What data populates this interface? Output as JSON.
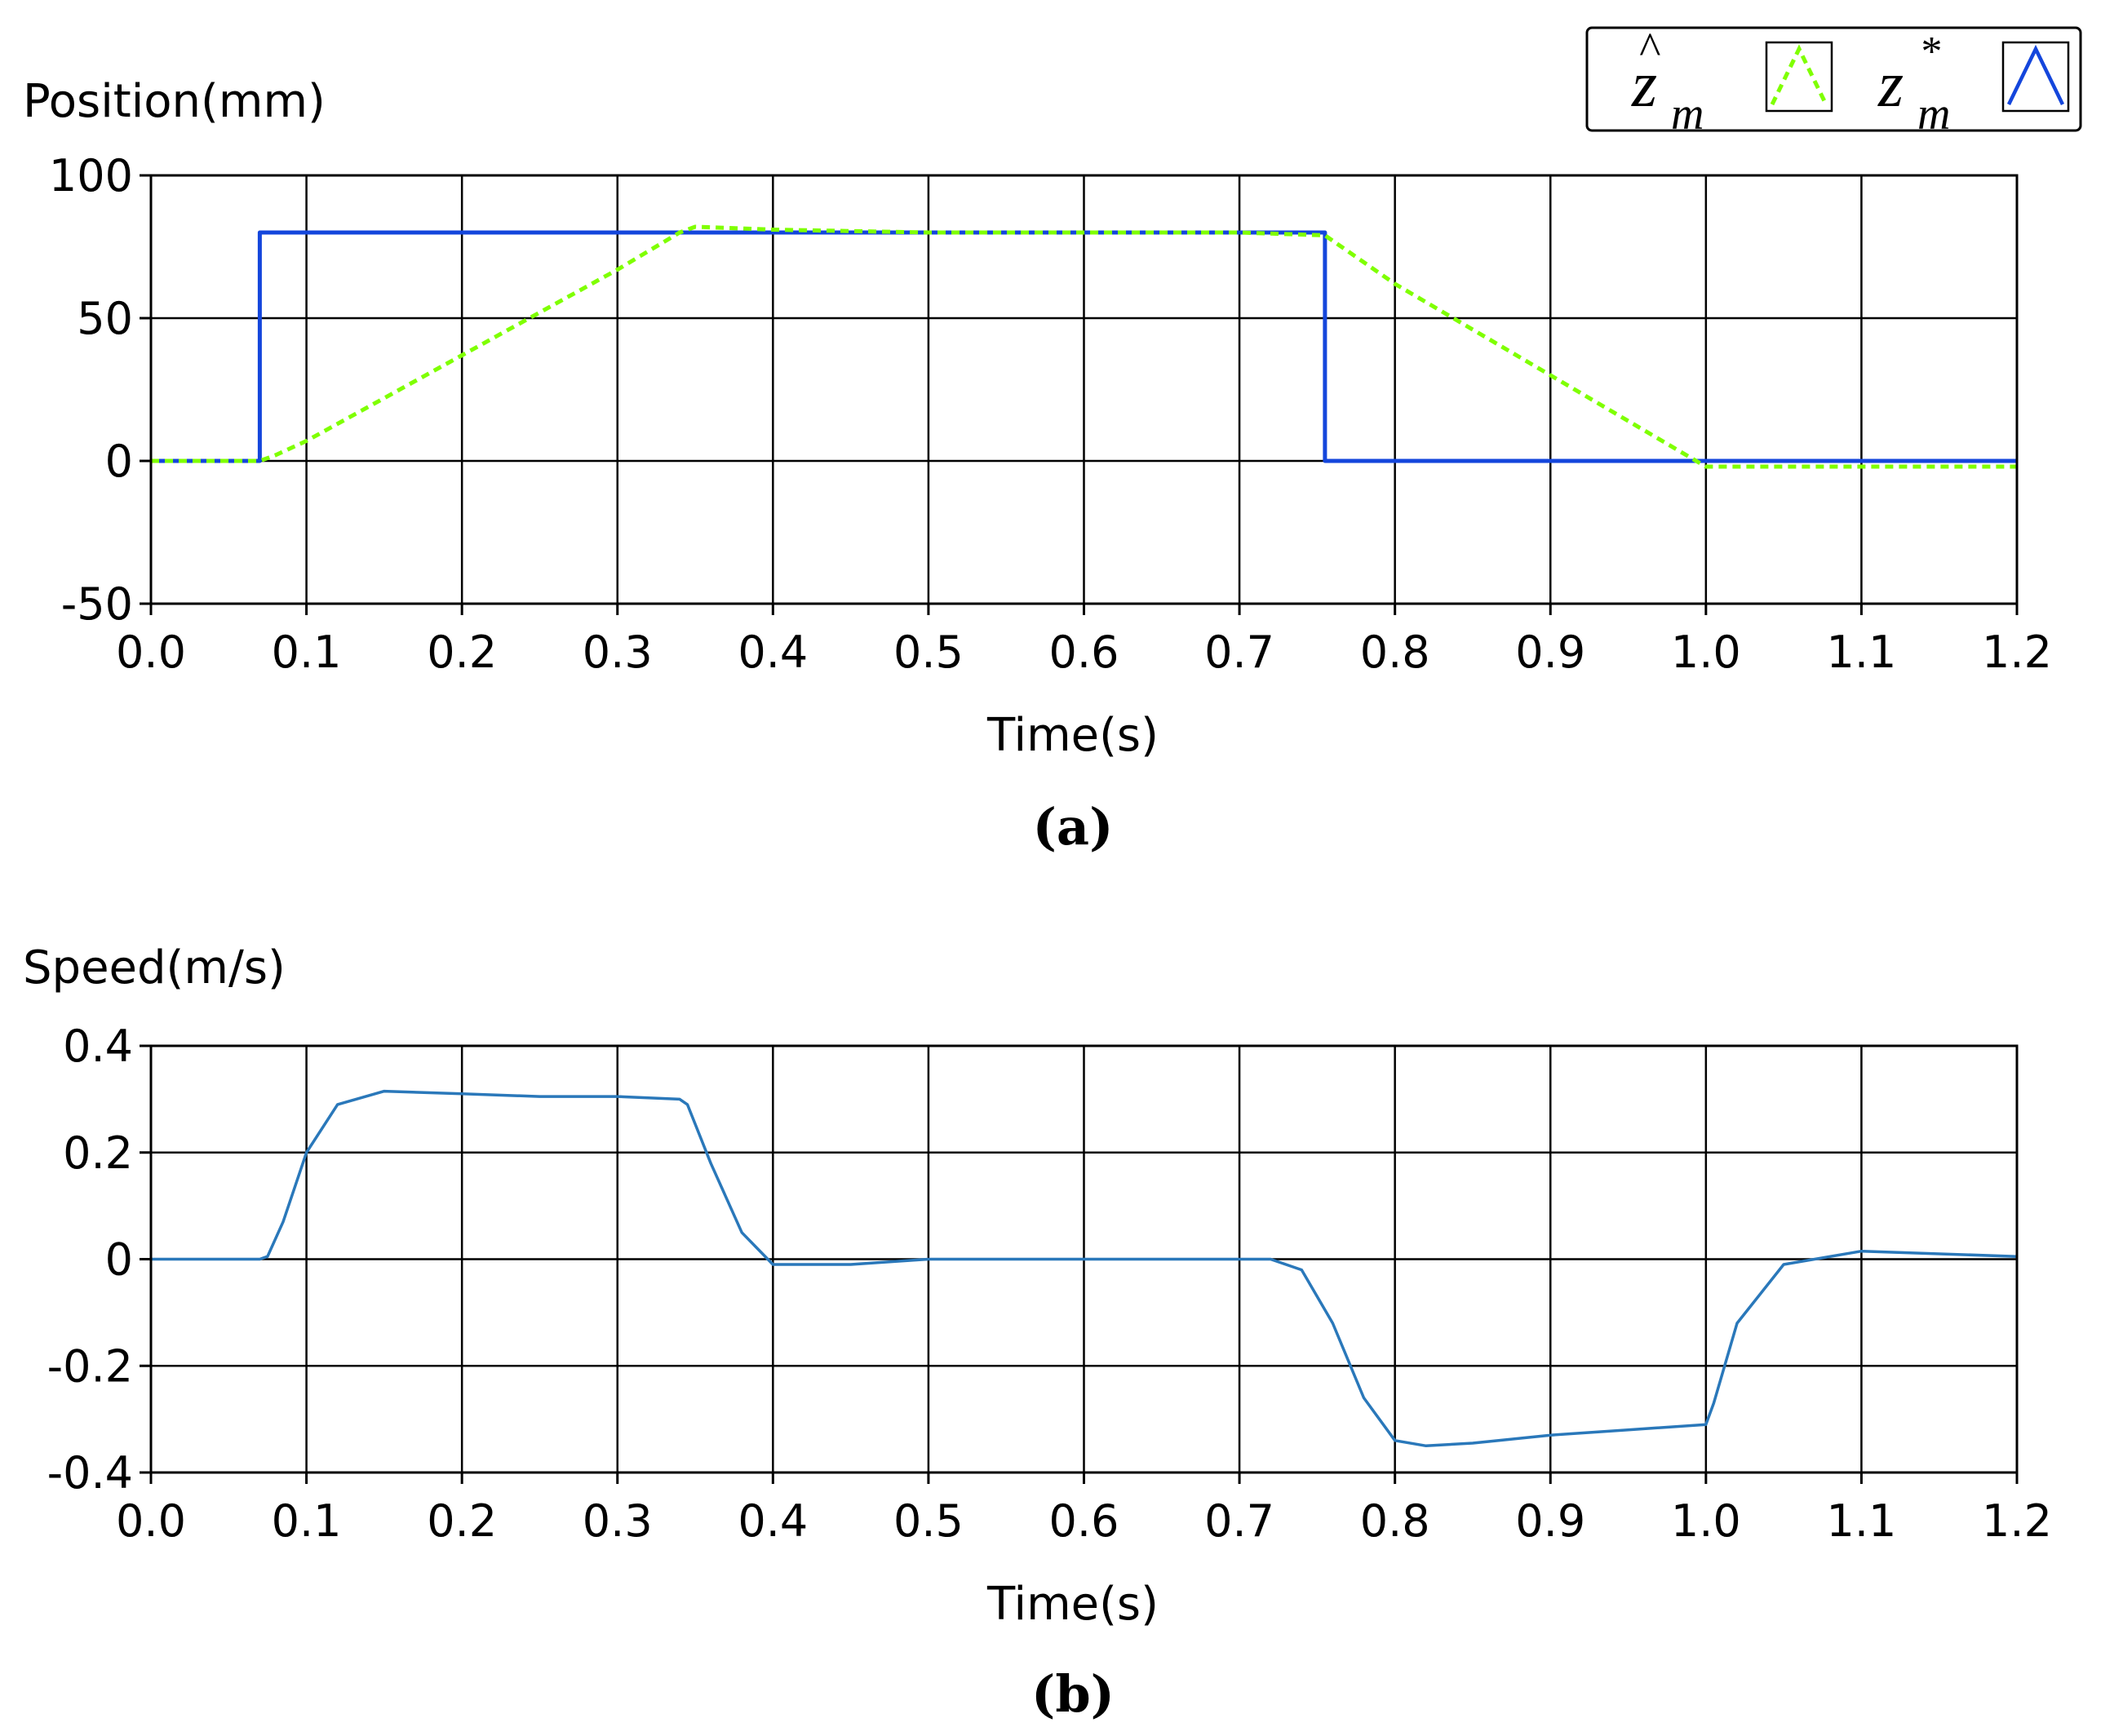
{
  "colors": {
    "estimated": "#7FFF00",
    "reference": "#1446DC",
    "speed": "#2A78BA"
  },
  "legend": {
    "items": [
      {
        "base": "z",
        "accent": "^",
        "sub": "m",
        "style": "dashed-green"
      },
      {
        "base": "z",
        "accent": "*",
        "sub": "m",
        "style": "solid-blue"
      }
    ]
  },
  "chart_data": [
    {
      "type": "line",
      "panel_label": "(a)",
      "ylabel": "Position(mm)",
      "xlabel": "Time(s)",
      "xlim": [
        0,
        1.2
      ],
      "ylim": [
        -50,
        100
      ],
      "xticks": [
        "0.0",
        "0.1",
        "0.2",
        "0.3",
        "0.4",
        "0.5",
        "0.6",
        "0.7",
        "0.8",
        "0.9",
        "1.0",
        "1.1",
        "1.2"
      ],
      "yticks": [
        "100",
        "50",
        "0",
        "-50"
      ],
      "grid": true,
      "legend_position": "top-right",
      "series": [
        {
          "key": "reference",
          "style": "solid",
          "x": [
            0,
            0.07,
            0.07,
            0.755,
            0.755,
            1.2
          ],
          "y": [
            0,
            0,
            80,
            80,
            0,
            0
          ]
        },
        {
          "key": "estimated",
          "style": "dashed",
          "x": [
            0,
            0.07,
            0.08,
            0.1,
            0.2,
            0.3,
            0.34,
            0.35,
            0.4,
            0.5,
            0.6,
            0.7,
            0.755,
            0.8,
            0.9,
            1.0,
            1.2
          ],
          "y": [
            0,
            0,
            2,
            7,
            37,
            67,
            80,
            82,
            81,
            80,
            80,
            80,
            79,
            62,
            30,
            -2,
            -2
          ]
        }
      ]
    },
    {
      "type": "line",
      "panel_label": "(b)",
      "ylabel": "Speed(m/s)",
      "xlabel": "Time(s)",
      "xlim": [
        0,
        1.2
      ],
      "ylim": [
        -0.4,
        0.4
      ],
      "xticks": [
        "0.0",
        "0.1",
        "0.2",
        "0.3",
        "0.4",
        "0.5",
        "0.6",
        "0.7",
        "0.8",
        "0.9",
        "1.0",
        "1.1",
        "1.2"
      ],
      "yticks": [
        "0.4",
        "0.2",
        "0",
        "-0.2",
        "-0.4"
      ],
      "grid": true,
      "series": [
        {
          "key": "speed",
          "style": "solid",
          "x": [
            0,
            0.07,
            0.075,
            0.085,
            0.1,
            0.12,
            0.15,
            0.2,
            0.25,
            0.3,
            0.34,
            0.345,
            0.36,
            0.38,
            0.4,
            0.45,
            0.5,
            0.6,
            0.72,
            0.74,
            0.76,
            0.78,
            0.8,
            0.82,
            0.85,
            0.9,
            0.95,
            1.0,
            1.005,
            1.02,
            1.05,
            1.1,
            1.2
          ],
          "y": [
            0,
            0,
            0.005,
            0.07,
            0.2,
            0.29,
            0.315,
            0.31,
            0.305,
            0.305,
            0.3,
            0.29,
            0.18,
            0.05,
            -0.01,
            -0.01,
            0,
            0,
            0,
            -0.02,
            -0.12,
            -0.26,
            -0.34,
            -0.35,
            -0.345,
            -0.33,
            -0.32,
            -0.31,
            -0.27,
            -0.12,
            -0.01,
            0.015,
            0.005
          ]
        }
      ]
    }
  ]
}
